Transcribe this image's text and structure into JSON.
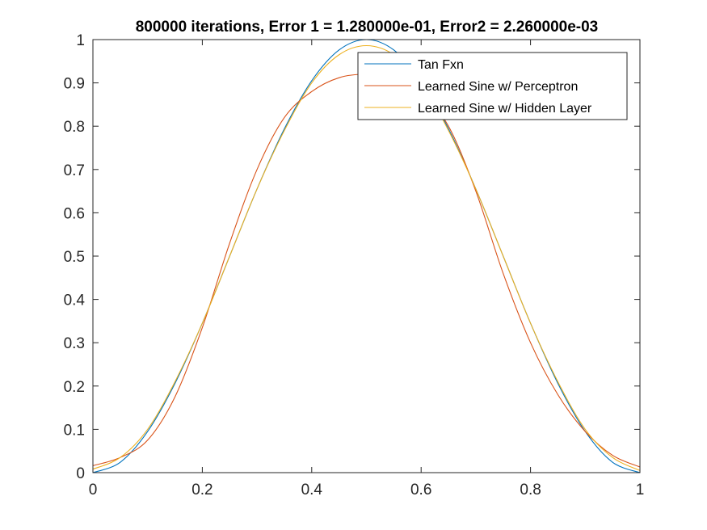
{
  "chart_data": {
    "type": "line",
    "title": "800000 iterations, Error 1 = 1.280000e-01, Error2 = 2.260000e-03",
    "xlabel": "",
    "ylabel": "",
    "xlim": [
      0,
      1
    ],
    "ylim": [
      0,
      1
    ],
    "x_ticks": [
      0,
      0.2,
      0.4,
      0.6,
      0.8,
      1
    ],
    "x_tick_labels": [
      "0",
      "0.2",
      "0.4",
      "0.6",
      "0.8",
      "1"
    ],
    "y_ticks": [
      0,
      0.1,
      0.2,
      0.3,
      0.4,
      0.5,
      0.6,
      0.7,
      0.8,
      0.9,
      1
    ],
    "y_tick_labels": [
      "0",
      "0.1",
      "0.2",
      "0.3",
      "0.4",
      "0.5",
      "0.6",
      "0.7",
      "0.8",
      "0.9",
      "1"
    ],
    "grid": false,
    "box": true,
    "legend_position": "top-right",
    "x": [
      0,
      0.05,
      0.1,
      0.15,
      0.2,
      0.25,
      0.3,
      0.35,
      0.4,
      0.45,
      0.5,
      0.55,
      0.6,
      0.65,
      0.7,
      0.75,
      0.8,
      0.85,
      0.9,
      0.95,
      1
    ],
    "series": [
      {
        "name": "Tan Fxn",
        "color": "#0072BD",
        "values": [
          0,
          0.024,
          0.095,
          0.206,
          0.345,
          0.5,
          0.655,
          0.794,
          0.905,
          0.976,
          1,
          0.976,
          0.905,
          0.794,
          0.655,
          0.5,
          0.345,
          0.206,
          0.095,
          0.024,
          0
        ]
      },
      {
        "name": "Learned Sine w/ Perceptron",
        "color": "#D95319",
        "values": [
          0.016,
          0.035,
          0.075,
          0.175,
          0.335,
          0.53,
          0.7,
          0.82,
          0.88,
          0.912,
          0.92,
          0.912,
          0.88,
          0.8,
          0.65,
          0.46,
          0.3,
          0.18,
          0.095,
          0.04,
          0.013
        ]
      },
      {
        "name": "Learned Sine w/ Hidden Layer",
        "color": "#EDB120",
        "values": [
          0.008,
          0.035,
          0.1,
          0.21,
          0.345,
          0.5,
          0.655,
          0.79,
          0.9,
          0.965,
          0.986,
          0.965,
          0.9,
          0.79,
          0.655,
          0.5,
          0.345,
          0.21,
          0.1,
          0.035,
          0.005
        ]
      }
    ]
  }
}
